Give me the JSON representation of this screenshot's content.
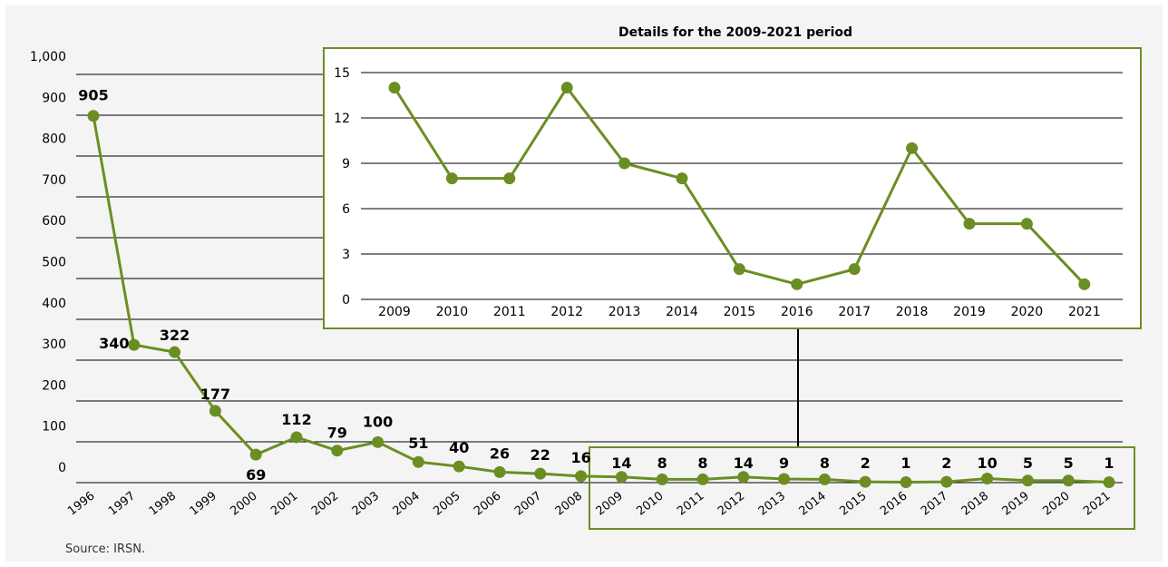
{
  "source_note": "Source: IRSN.",
  "colors": {
    "line": "#6b8e23",
    "grid": "#000000",
    "axis_text": "#000000",
    "inset_border": "#6b8e23"
  },
  "chart_data": [
    {
      "type": "line",
      "title": "",
      "x": [
        "1996",
        "1997",
        "1998",
        "1999",
        "2000",
        "2001",
        "2002",
        "2003",
        "2004",
        "2005",
        "2006",
        "2007",
        "2008",
        "2009",
        "2010",
        "2011",
        "2012",
        "2013",
        "2014",
        "2015",
        "2016",
        "2017",
        "2018",
        "2019",
        "2020",
        "2021"
      ],
      "series": [
        {
          "values": [
            905,
            340,
            322,
            177,
            69,
            112,
            79,
            100,
            51,
            40,
            26,
            22,
            16,
            14,
            8,
            8,
            14,
            9,
            8,
            2,
            1,
            2,
            10,
            5,
            5,
            1
          ]
        }
      ],
      "yticks": [
        "0",
        "100",
        "200",
        "300",
        "400",
        "500",
        "600",
        "700",
        "800",
        "900",
        "1,000"
      ],
      "ylim": [
        0,
        1000
      ],
      "grid": true,
      "highlight_range": [
        "2009",
        "2021"
      ]
    },
    {
      "type": "line",
      "title": "Details for the 2009-2021 period",
      "x": [
        "2009",
        "2010",
        "2011",
        "2012",
        "2013",
        "2014",
        "2015",
        "2016",
        "2017",
        "2018",
        "2019",
        "2020",
        "2021"
      ],
      "series": [
        {
          "values": [
            14,
            8,
            8,
            14,
            9,
            8,
            2,
            1,
            2,
            10,
            5,
            5,
            1
          ]
        }
      ],
      "yticks": [
        "0",
        "3",
        "6",
        "9",
        "12",
        "15"
      ],
      "ylim": [
        0,
        15
      ],
      "grid": true
    }
  ]
}
